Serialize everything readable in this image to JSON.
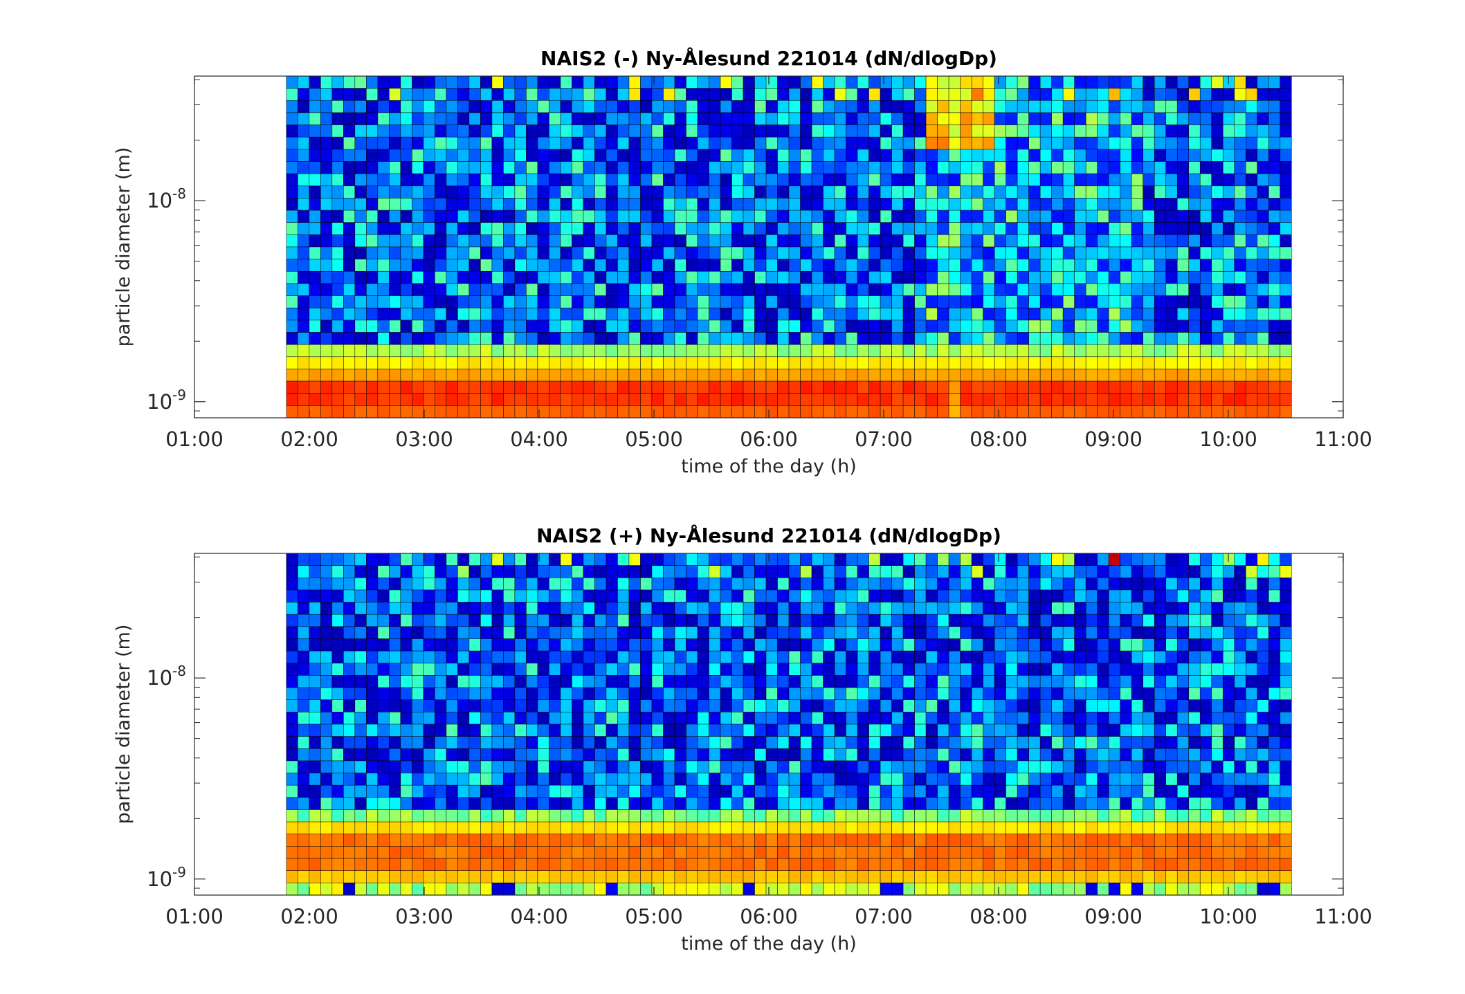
{
  "chart_data": [
    {
      "type": "heatmap",
      "title": "NAIS2 (-) Ny-Ålesund 221014 (dN/dlogDp)",
      "xlabel": "time of the day (h)",
      "ylabel": "particle diameter (m)",
      "xlim": [
        1.0,
        11.0
      ],
      "ylim_log10": [
        -9.08,
        -7.38
      ],
      "data_xrange": [
        1.8,
        10.55
      ],
      "data_yrange_log10": [
        -9.08,
        -7.38
      ],
      "x_ticks": [
        1,
        2,
        3,
        4,
        5,
        6,
        7,
        8,
        9,
        10,
        11
      ],
      "x_tick_labels": [
        "01:00",
        "02:00",
        "03:00",
        "04:00",
        "05:00",
        "06:00",
        "07:00",
        "08:00",
        "09:00",
        "10:00",
        "11:00"
      ],
      "y_ticks": [
        {
          "base": "10",
          "exp": "-9",
          "log10": -9
        },
        {
          "base": "10",
          "exp": "-8",
          "log10": -8
        }
      ],
      "colormap": "jet",
      "n_time_bins": 88,
      "n_size_bins": 28,
      "pattern": "negative",
      "seed": 11
    },
    {
      "type": "heatmap",
      "title": "NAIS2 (+) Ny-Ålesund 221014 (dN/dlogDp)",
      "xlabel": "time of the day (h)",
      "ylabel": "particle diameter (m)",
      "xlim": [
        1.0,
        11.0
      ],
      "ylim_log10": [
        -9.08,
        -7.38
      ],
      "data_xrange": [
        1.8,
        10.55
      ],
      "data_yrange_log10": [
        -9.08,
        -7.38
      ],
      "x_ticks": [
        1,
        2,
        3,
        4,
        5,
        6,
        7,
        8,
        9,
        10,
        11
      ],
      "x_tick_labels": [
        "01:00",
        "02:00",
        "03:00",
        "04:00",
        "05:00",
        "06:00",
        "07:00",
        "08:00",
        "09:00",
        "10:00",
        "11:00"
      ],
      "y_ticks": [
        {
          "base": "10",
          "exp": "-9",
          "log10": -9
        },
        {
          "base": "10",
          "exp": "-8",
          "log10": -8
        }
      ],
      "colormap": "jet",
      "n_time_bins": 88,
      "n_size_bins": 28,
      "pattern": "positive",
      "seed": 29
    }
  ]
}
